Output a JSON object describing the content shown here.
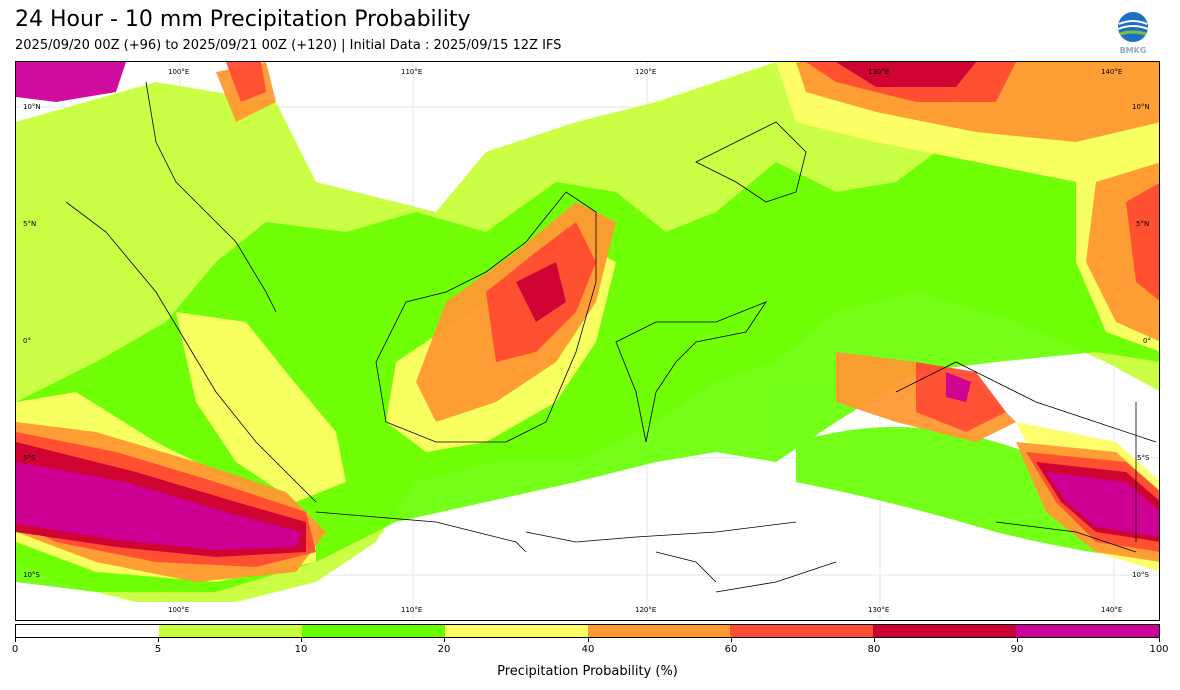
{
  "header": {
    "title": "24 Hour - 10 mm Precipitation Probability",
    "subtitle": "2025/09/20 00Z (+96) to 2025/09/21 00Z (+120) | Initial Data : 2025/09/15 12Z IFS",
    "logo_text": "BMKG"
  },
  "map": {
    "top_lon_labels": [
      "100°E",
      "110°E",
      "120°E",
      "130°E",
      "140°E"
    ],
    "bottom_lon_labels": [
      "100°E",
      "110°E",
      "120°E",
      "130°E",
      "140°E"
    ],
    "left_lat_labels": [
      "10°N",
      "5°N",
      "0°",
      "5°S",
      "10°S"
    ],
    "right_lat_labels": [
      "10°N",
      "5°N",
      "0°",
      "5°S",
      "10°S"
    ]
  },
  "colorbar": {
    "ticks": [
      "0",
      "5",
      "10",
      "20",
      "40",
      "60",
      "80",
      "90",
      "100"
    ],
    "colors": [
      "#ffffff",
      "#c8ff3c",
      "#66ff00",
      "#ffff66",
      "#ff9933",
      "#ff4d33",
      "#cc0033",
      "#cc0099"
    ],
    "axis_label": "Precipitation Probability (%)"
  }
}
